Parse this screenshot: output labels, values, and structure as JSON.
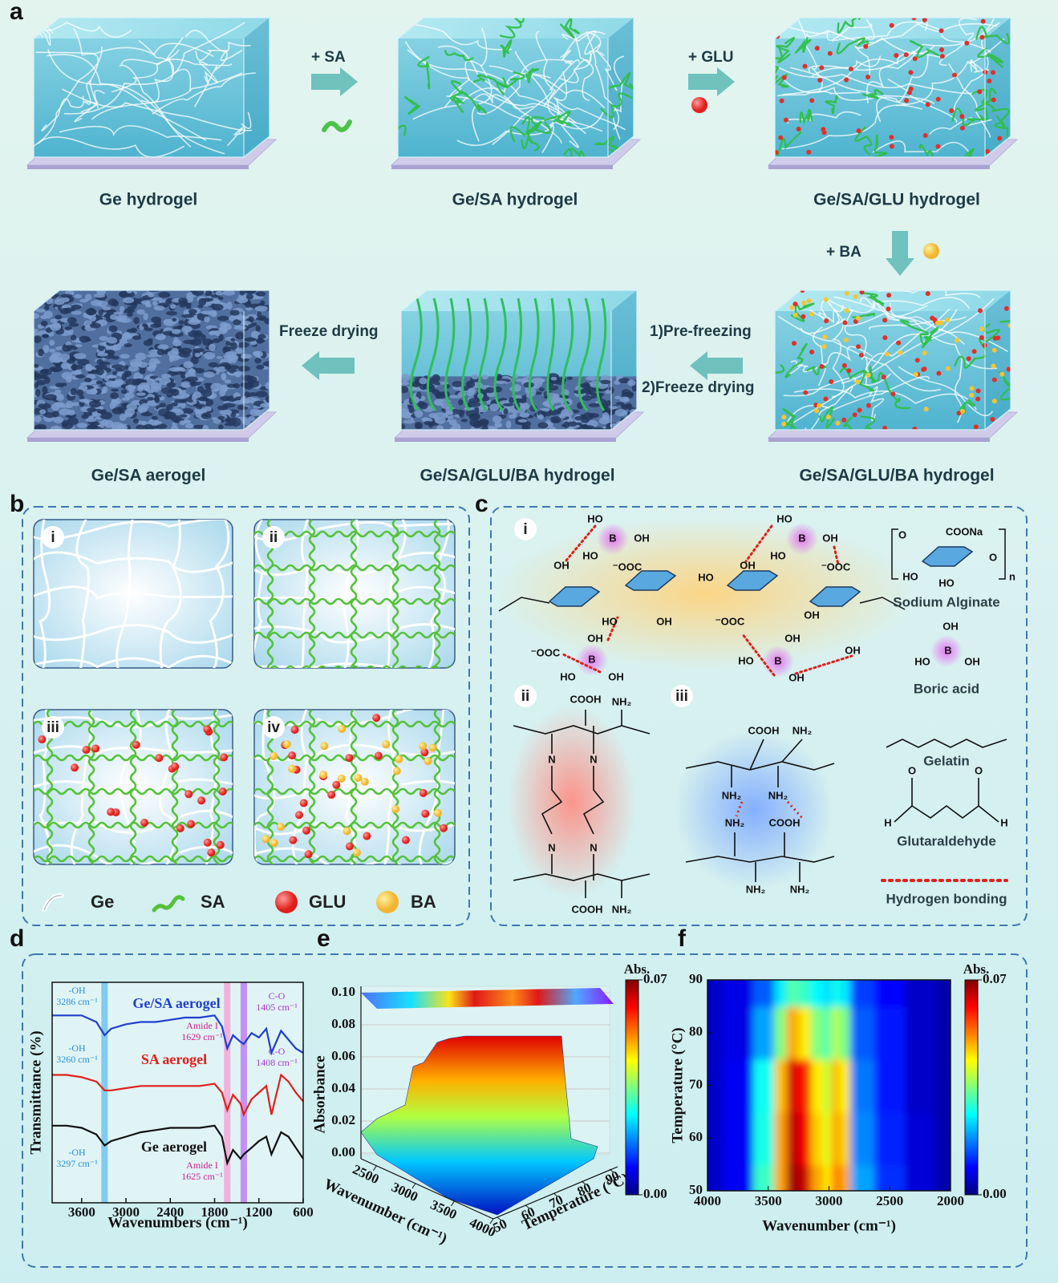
{
  "panel_labels": [
    "a",
    "b",
    "c",
    "d",
    "e",
    "f"
  ],
  "panel_a": {
    "samples": [
      "Ge hydrogel",
      "Ge/SA hydrogel",
      "Ge/SA/GLU hydrogel",
      "Ge/SA aerogel",
      "Ge/SA/GLU/BA hydrogel",
      "Ge/SA/GLU/BA hydrogel"
    ],
    "steps": [
      "+ SA",
      "+ GLU",
      "+ BA",
      "1)Pre-freezing",
      "2)Freeze drying",
      "Freeze drying"
    ]
  },
  "panel_b": {
    "subpanels": [
      "i",
      "ii",
      "iii",
      "iv"
    ],
    "legend": [
      "Ge",
      "SA",
      "GLU",
      "BA"
    ]
  },
  "panel_c": {
    "subpanels": [
      "i",
      "ii",
      "iii"
    ],
    "legend": [
      "Sodium Alginate",
      "Boric acid",
      "Gelatin",
      "Glutaraldehyde",
      "Hydrogen bonding"
    ],
    "labels": [
      "HO",
      "B",
      "OH",
      "HO",
      "HO",
      "B",
      "OH",
      "HO",
      "OH",
      "B",
      "OH",
      "HO",
      "OH",
      "HO",
      "B",
      "OH",
      "OH",
      "⁻OOC",
      "HO",
      "OH",
      "⁻OOC",
      "HO",
      "OH",
      "⁻OOC",
      "OH",
      "OH",
      "⁻OOC",
      "COONa",
      "O",
      "O",
      "HO",
      "HO",
      "n",
      "OH",
      "HO",
      "B",
      "OH",
      "COOH",
      "NH₂",
      "N",
      "N",
      "N",
      "N",
      "COOH",
      "NH₂",
      "COOH",
      "NH₂",
      "NH₂",
      "NH₂",
      "NH₂",
      "COOH",
      "NH₂",
      "NH₂",
      "O",
      "O",
      "H",
      "H"
    ]
  },
  "chart_data": [
    {
      "type": "line",
      "xlabel": "Wavenumbers (cm⁻¹)",
      "ylabel": "Transmittance (%)",
      "xlim": [
        4000,
        600
      ],
      "ylim": [
        0,
        100
      ],
      "xticks": [
        3600,
        3000,
        2400,
        1800,
        1200,
        600
      ],
      "x": [
        4000,
        3800,
        3600,
        3400,
        3290,
        3200,
        3000,
        2800,
        2600,
        2400,
        2200,
        2000,
        1800,
        1700,
        1629,
        1550,
        1450,
        1405,
        1300,
        1200,
        1100,
        1030,
        900,
        800,
        700,
        600
      ],
      "series": [
        {
          "name": "Ge/SA aerogel",
          "color": "#1f3fd0",
          "values": [
            85,
            85,
            85,
            82,
            76,
            79,
            81,
            82,
            82,
            83,
            84,
            84,
            85,
            80,
            70,
            76,
            73,
            72,
            77,
            75,
            79,
            68,
            78,
            74,
            70,
            68
          ]
        },
        {
          "name": "SA aerogel",
          "color": "#e0201c",
          "values": [
            58,
            58,
            57,
            55,
            51,
            51,
            52,
            53,
            53,
            53,
            53,
            53,
            54,
            50,
            42,
            49,
            45,
            40,
            47,
            50,
            53,
            40,
            58,
            55,
            50,
            46
          ]
        },
        {
          "name": "Ge aerogel",
          "color": "#111111",
          "values": [
            35,
            35,
            34,
            31,
            26,
            28,
            30,
            32,
            33,
            34,
            34,
            34,
            35,
            30,
            18,
            24,
            20,
            22,
            25,
            28,
            30,
            22,
            32,
            30,
            25,
            20
          ]
        }
      ],
      "bands": [
        {
          "x": 3290,
          "color": "#6fc3f2"
        },
        {
          "x": 1629,
          "color": "#f3a6d6"
        },
        {
          "x": 1405,
          "color": "#c07ef2"
        }
      ],
      "annotations": [
        {
          "lines": [
            "-OH",
            "3286 cm⁻¹"
          ],
          "color": "#2a8fe0"
        },
        {
          "lines": [
            "-OH",
            "3260 cm⁻¹"
          ],
          "color": "#2a8fe0"
        },
        {
          "lines": [
            "-OH",
            "3297 cm⁻¹"
          ],
          "color": "#2a8fe0"
        },
        {
          "lines": [
            "Amide I",
            "1629 cm⁻¹"
          ],
          "color": "#d0208e"
        },
        {
          "lines": [
            "Amide I",
            "1625 cm⁻¹"
          ],
          "color": "#d0208e"
        },
        {
          "lines": [
            "C-O",
            "1405 cm⁻¹"
          ],
          "color": "#a23ad8"
        },
        {
          "lines": [
            "C-O",
            "1408 cm⁻¹"
          ],
          "color": "#a23ad8"
        }
      ]
    },
    {
      "type": "surface3d",
      "zlabel": "Absorbance",
      "xlabel": "Wavenumber (cm⁻¹)",
      "ylabel": "Temperature (°C)",
      "zlim": [
        0,
        0.1
      ],
      "zticks": [
        {
          "value": 0,
          "label": "0.00"
        },
        {
          "value": 0.02,
          "label": "0.02"
        },
        {
          "value": 0.04,
          "label": "0.04"
        },
        {
          "value": 0.06,
          "label": "0.06"
        },
        {
          "value": 0.08,
          "label": "0.08"
        },
        {
          "value": 0.1,
          "label": "0.10"
        }
      ],
      "xlim": [
        2300,
        4000
      ],
      "xticks": [
        2500,
        3000,
        3500,
        4000
      ],
      "ylim": [
        50,
        90
      ],
      "yticks": [
        50,
        60,
        70,
        80,
        90
      ],
      "colorbar_label": "Abs.",
      "clim": [
        0,
        0.07
      ],
      "cticks": [
        {
          "value": 0.07,
          "label": "0.07"
        },
        {
          "value": 0,
          "label": "0.00"
        }
      ]
    },
    {
      "type": "heatmap",
      "xlabel": "Wavenumber (cm⁻¹)",
      "ylabel": "Temperature (°C)",
      "xlim": [
        4000,
        2000
      ],
      "ylim": [
        50,
        90
      ],
      "xticks": [
        4000,
        3500,
        3000,
        2500,
        2000
      ],
      "yticks": [
        50,
        60,
        70,
        80,
        90
      ],
      "x": [
        4000,
        3750,
        3500,
        3400,
        3300,
        3200,
        3100,
        3000,
        2950,
        2900,
        2750,
        2500,
        2250,
        2000
      ],
      "y": [
        50,
        60,
        70,
        80,
        90
      ],
      "values": [
        [
          0.005,
          0.008,
          0.03,
          0.05,
          0.068,
          0.065,
          0.05,
          0.045,
          0.055,
          0.05,
          0.02,
          0.012,
          0.006,
          0.003
        ],
        [
          0.005,
          0.008,
          0.028,
          0.05,
          0.066,
          0.062,
          0.047,
          0.042,
          0.052,
          0.047,
          0.018,
          0.011,
          0.006,
          0.003
        ],
        [
          0.005,
          0.008,
          0.027,
          0.048,
          0.064,
          0.06,
          0.045,
          0.04,
          0.05,
          0.045,
          0.017,
          0.01,
          0.005,
          0.003
        ],
        [
          0.005,
          0.007,
          0.02,
          0.035,
          0.05,
          0.045,
          0.035,
          0.032,
          0.04,
          0.035,
          0.015,
          0.01,
          0.005,
          0.003
        ],
        [
          0.005,
          0.007,
          0.015,
          0.025,
          0.032,
          0.03,
          0.026,
          0.024,
          0.028,
          0.025,
          0.013,
          0.009,
          0.005,
          0.003
        ]
      ],
      "colorbar_label": "Abs.",
      "clim": [
        0,
        0.07
      ],
      "cticks": [
        {
          "value": 0.07,
          "label": "0.07"
        },
        {
          "value": 0,
          "label": "0.00"
        }
      ]
    }
  ]
}
